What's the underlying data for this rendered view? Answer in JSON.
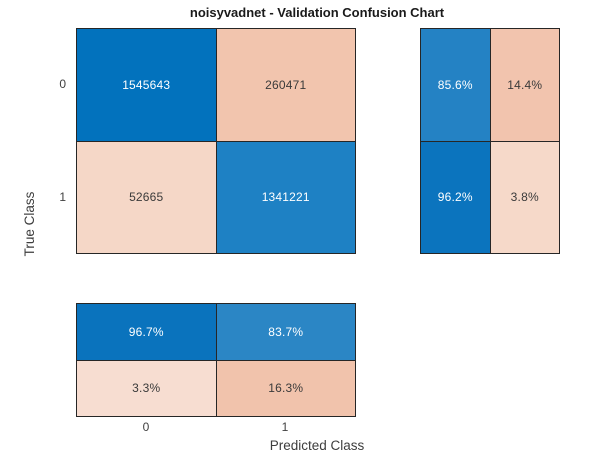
{
  "title": "noisyvadnet - Validation Confusion Chart",
  "axes": {
    "xlabel": "Predicted Class",
    "ylabel": "True Class",
    "x_ticks": [
      "0",
      "1"
    ],
    "y_ticks": [
      "0",
      "1"
    ]
  },
  "colors": {
    "diagonal_blue": "#0072BD",
    "off_diagonal_salmon": "#F2C5AE",
    "cell_border": "#262626",
    "tick_text": "#404040"
  },
  "chart_data": {
    "type": "heatmap",
    "subtype": "confusion-matrix",
    "title": "noisyvadnet - Validation Confusion Chart",
    "xlabel": "Predicted Class",
    "ylabel": "True Class",
    "classes": [
      "0",
      "1"
    ],
    "matrix_counts": [
      [
        1545643,
        260471
      ],
      [
        52665,
        1341221
      ]
    ],
    "row_summary_pct": [
      [
        "85.6%",
        "14.4%"
      ],
      [
        "96.2%",
        "3.8%"
      ]
    ],
    "column_summary_pct": [
      [
        "96.7%",
        "83.7%"
      ],
      [
        "3.3%",
        "16.3%"
      ]
    ],
    "cells": {
      "main": [
        {
          "value": "1545643",
          "bg": "#0272BD",
          "fg": "#FFFFFF"
        },
        {
          "value": "260471",
          "bg": "#F2C5AE",
          "fg": "#3A3A3A"
        },
        {
          "value": "52665",
          "bg": "#F5D7C7",
          "fg": "#3A3A3A"
        },
        {
          "value": "1341221",
          "bg": "#1E81C4",
          "fg": "#FFFFFF"
        }
      ],
      "row_summary": [
        {
          "value": "85.6%",
          "bg": "#2482C4",
          "fg": "#FFFFFF"
        },
        {
          "value": "14.4%",
          "bg": "#F2C4AE",
          "fg": "#3A3A3A"
        },
        {
          "value": "96.2%",
          "bg": "#0B74BE",
          "fg": "#FFFFFF"
        },
        {
          "value": "3.8%",
          "bg": "#F6D9C9",
          "fg": "#3A3A3A"
        }
      ],
      "col_summary": [
        {
          "value": "96.7%",
          "bg": "#0A73BD",
          "fg": "#FFFFFF"
        },
        {
          "value": "83.7%",
          "bg": "#2B86C5",
          "fg": "#FFFFFF"
        },
        {
          "value": "3.3%",
          "bg": "#F7DDD1",
          "fg": "#3A3A3A"
        },
        {
          "value": "16.3%",
          "bg": "#F1C3AC",
          "fg": "#3A3A3A"
        }
      ]
    }
  }
}
